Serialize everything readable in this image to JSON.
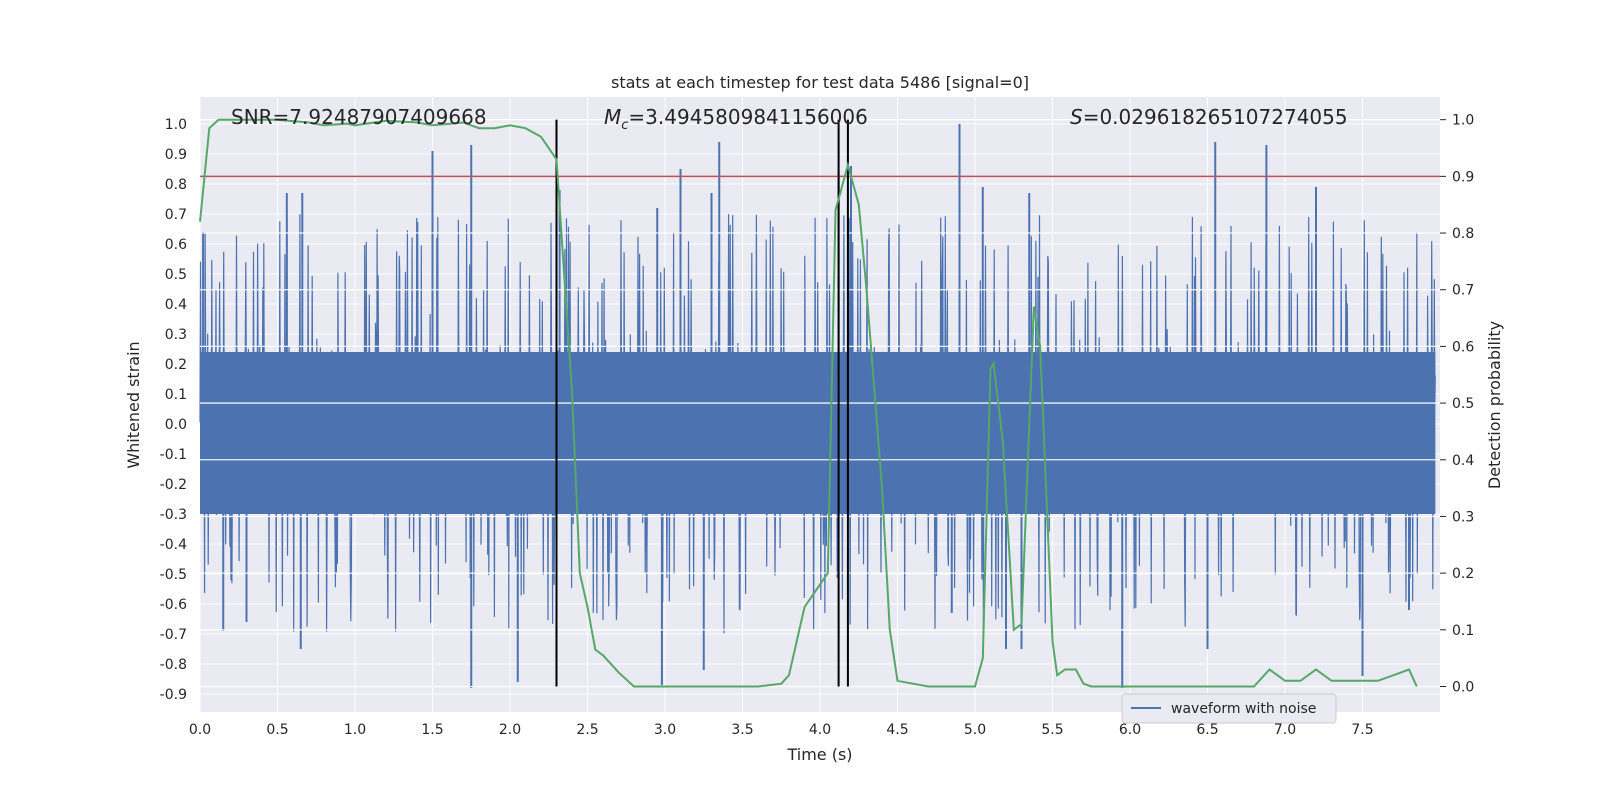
{
  "chart_data": {
    "type": "line",
    "title": "stats at each timestep for test data 5486 [signal=0]",
    "xlabel": "Time (s)",
    "ylabel": "Whitened strain",
    "y2label": "Detection probability",
    "xlim": [
      0.0,
      8.0
    ],
    "ylim": [
      -0.96,
      1.09
    ],
    "y2lim": [
      -0.045,
      1.04
    ],
    "x_ticks": [
      "0.0",
      "0.5",
      "1.0",
      "1.5",
      "2.0",
      "2.5",
      "3.0",
      "3.5",
      "4.0",
      "4.5",
      "5.0",
      "5.5",
      "6.0",
      "6.5",
      "7.0",
      "7.5"
    ],
    "y_ticks": [
      "1.0",
      "0.9",
      "0.8",
      "0.7",
      "0.6",
      "0.5",
      "0.4",
      "0.3",
      "0.2",
      "0.1",
      "0.0",
      "-0.1",
      "-0.2",
      "-0.3",
      "-0.4",
      "-0.5",
      "-0.6",
      "-0.7",
      "-0.8",
      "-0.9"
    ],
    "y2_ticks": [
      "1.0",
      "0.9",
      "0.8",
      "0.7",
      "0.6",
      "0.5",
      "0.4",
      "0.3",
      "0.2",
      "0.1",
      "0.0"
    ],
    "annotations": {
      "snr": "SNR=7.92487907409668",
      "mc_symbol": "M",
      "mc_sub": "c",
      "mc_value": "=3.4945809841156006",
      "s_symbol": "S",
      "s_value": "=0.029618265107274055"
    },
    "legend": {
      "label": "waveform with noise",
      "placement": "lower-right"
    },
    "grid": true,
    "threshold_probability": 0.9,
    "vertical_markers": [
      2.3,
      4.12,
      4.18
    ],
    "series": [
      {
        "name": "waveform with noise",
        "axis": "left",
        "color": "#4c72b0",
        "kind": "noise",
        "base_amplitude": 0.35,
        "spike_max": 1.0,
        "spike_min": -0.88,
        "spikes": [
          [
            0.02,
            0.64
          ],
          [
            0.56,
            0.77
          ],
          [
            0.66,
            0.77
          ],
          [
            1.5,
            0.91
          ],
          [
            1.75,
            0.93
          ],
          [
            2.32,
            0.78
          ],
          [
            2.95,
            0.72
          ],
          [
            3.1,
            0.85
          ],
          [
            3.3,
            0.77
          ],
          [
            3.35,
            0.94
          ],
          [
            4.12,
            0.84
          ],
          [
            4.2,
            0.86
          ],
          [
            4.9,
            1.0
          ],
          [
            5.05,
            0.79
          ],
          [
            5.35,
            0.77
          ],
          [
            6.55,
            0.94
          ],
          [
            6.88,
            0.93
          ],
          [
            7.2,
            0.79
          ],
          [
            0.15,
            -0.69
          ],
          [
            0.3,
            -0.66
          ],
          [
            0.65,
            -0.75
          ],
          [
            1.75,
            -0.88
          ],
          [
            2.05,
            -0.86
          ],
          [
            2.98,
            -0.87
          ],
          [
            3.25,
            -0.82
          ],
          [
            4.85,
            -0.63
          ],
          [
            5.2,
            -0.75
          ],
          [
            5.3,
            -0.75
          ],
          [
            5.95,
            -0.88
          ],
          [
            6.5,
            -0.75
          ],
          [
            7.5,
            -0.84
          ],
          [
            7.8,
            -0.62
          ]
        ]
      },
      {
        "name": "",
        "axis": "right",
        "color": "#55a868",
        "x": [
          0.0,
          0.06,
          0.12,
          0.25,
          0.5,
          0.7,
          0.8,
          0.95,
          1.0,
          1.2,
          1.4,
          1.5,
          1.7,
          1.8,
          1.9,
          2.0,
          2.1,
          2.2,
          2.3,
          2.4,
          2.45,
          2.5,
          2.55,
          2.6,
          2.65,
          2.7,
          2.8,
          3.0,
          3.2,
          3.4,
          3.6,
          3.75,
          3.8,
          3.9,
          4.0,
          4.05,
          4.1,
          4.18,
          4.25,
          4.3,
          4.4,
          4.45,
          4.5,
          4.6,
          4.7,
          4.8,
          4.9,
          5.0,
          5.05,
          5.1,
          5.12,
          5.18,
          5.25,
          5.3,
          5.38,
          5.42,
          5.5,
          5.53,
          5.58,
          5.65,
          5.7,
          5.75,
          5.85,
          6.0,
          6.2,
          6.4,
          6.6,
          6.8,
          6.9,
          7.0,
          7.1,
          7.2,
          7.3,
          7.4,
          7.5,
          7.6,
          7.7,
          7.8,
          7.85
        ],
        "values": [
          0.82,
          0.985,
          1.0,
          1.0,
          1.0,
          0.995,
          0.99,
          0.993,
          0.99,
          0.998,
          0.995,
          0.99,
          0.995,
          0.985,
          0.985,
          0.99,
          0.985,
          0.97,
          0.93,
          0.52,
          0.2,
          0.14,
          0.065,
          0.055,
          0.04,
          0.025,
          0.0,
          0.0,
          0.0,
          0.0,
          0.0,
          0.005,
          0.02,
          0.14,
          0.18,
          0.2,
          0.84,
          0.92,
          0.85,
          0.7,
          0.35,
          0.1,
          0.01,
          0.005,
          0.0,
          0.0,
          0.0,
          0.0,
          0.05,
          0.56,
          0.57,
          0.43,
          0.1,
          0.11,
          0.67,
          0.6,
          0.08,
          0.02,
          0.03,
          0.03,
          0.005,
          0.0,
          0.0,
          0.0,
          0.0,
          0.0,
          0.0,
          0.0,
          0.03,
          0.01,
          0.01,
          0.03,
          0.01,
          0.01,
          0.01,
          0.01,
          0.02,
          0.03,
          0.0
        ]
      }
    ]
  }
}
